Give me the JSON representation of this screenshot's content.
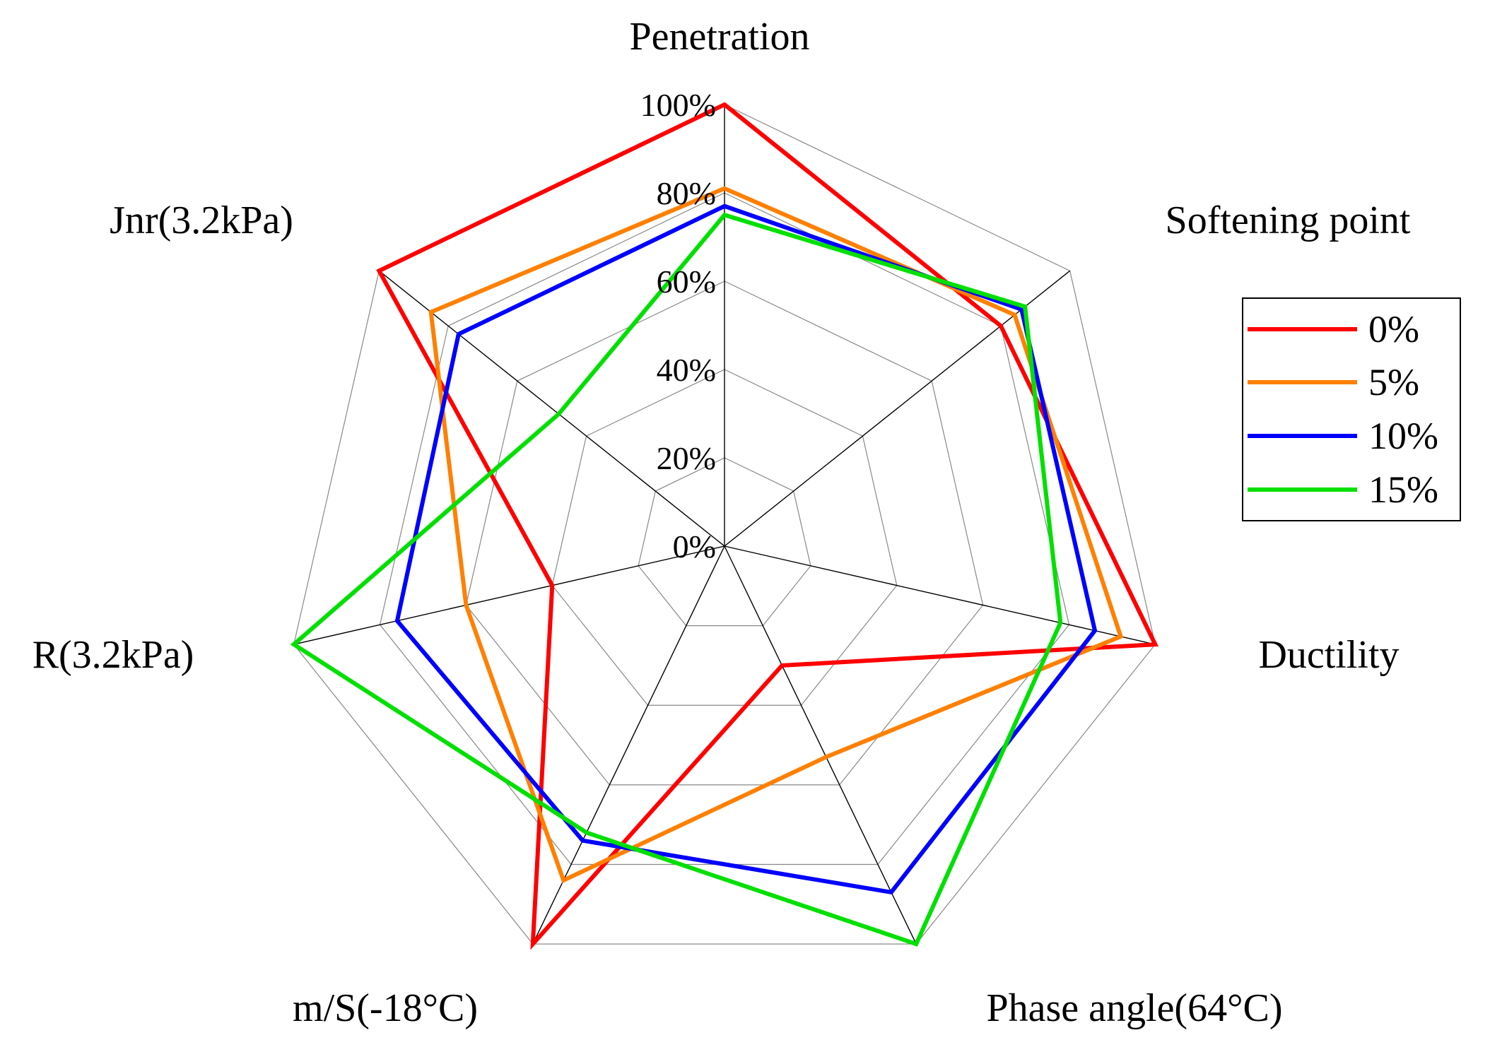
{
  "chart_data": {
    "type": "radar",
    "axes": [
      "Penetration",
      "Softening point",
      "Ductility",
      "Phase angle(64°C)",
      "m/S(-18°C)",
      "R(3.2kPa)",
      "Jnr(3.2kPa)"
    ],
    "radial_ticks": [
      "0%",
      "20%",
      "40%",
      "60%",
      "80%",
      "100%"
    ],
    "rmax": 100,
    "grid_levels": [
      20,
      40,
      60,
      80,
      100
    ],
    "series": [
      {
        "name": "0%",
        "color": "#ff0000",
        "values": [
          100,
          80,
          100,
          30,
          100,
          40,
          100
        ]
      },
      {
        "name": "5%",
        "color": "#ff8000",
        "values": [
          81,
          84,
          92,
          53,
          84,
          60,
          85
        ]
      },
      {
        "name": "10%",
        "color": "#0000ff",
        "values": [
          77,
          86,
          86,
          87,
          74,
          76,
          77
        ]
      },
      {
        "name": "15%",
        "color": "#00e000",
        "values": [
          75,
          87,
          78,
          100,
          72,
          100,
          48
        ]
      }
    ],
    "legend_position": "right"
  }
}
